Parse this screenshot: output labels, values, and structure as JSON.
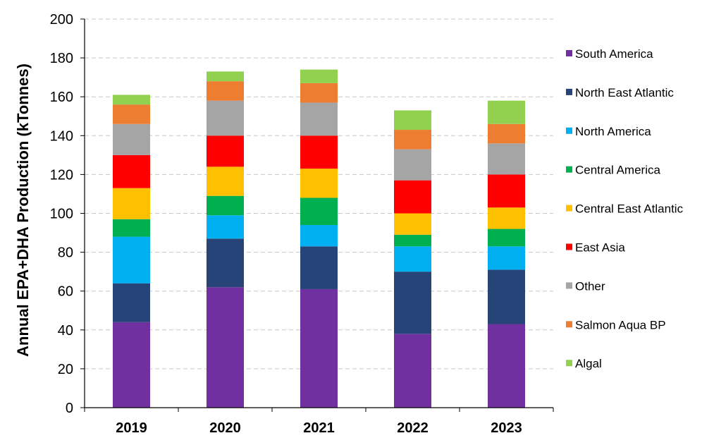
{
  "chart_data": {
    "type": "bar",
    "stacked": true,
    "title": "",
    "xlabel": "",
    "ylabel": "Annual EPA+DHA Production (kTonnes)",
    "ylim": [
      0,
      200
    ],
    "yticks": [
      0,
      20,
      40,
      60,
      80,
      100,
      120,
      140,
      160,
      180,
      200
    ],
    "grid": "horizontal dashed",
    "legend_position": "right",
    "categories": [
      "2019",
      "2020",
      "2021",
      "2022",
      "2023"
    ],
    "series": [
      {
        "name": "South America",
        "color": "#7030A0",
        "values": [
          44,
          62,
          61,
          38,
          43
        ]
      },
      {
        "name": "North East Atlantic",
        "color": "#264478",
        "values": [
          20,
          25,
          22,
          32,
          28
        ]
      },
      {
        "name": "North America",
        "color": "#00B0F0",
        "values": [
          24,
          12,
          11,
          13,
          12
        ]
      },
      {
        "name": "Central America",
        "color": "#00B050",
        "values": [
          9,
          10,
          14,
          6,
          9
        ]
      },
      {
        "name": "Central East Atlantic",
        "color": "#FFC000",
        "values": [
          16,
          15,
          15,
          11,
          11
        ]
      },
      {
        "name": "East Asia",
        "color": "#FF0000",
        "values": [
          17,
          16,
          17,
          17,
          17
        ]
      },
      {
        "name": "Other",
        "color": "#A5A5A5",
        "values": [
          16,
          18,
          17,
          16,
          16
        ]
      },
      {
        "name": "Salmon Aqua BP",
        "color": "#ED7D31",
        "values": [
          10,
          10,
          10,
          10,
          10
        ]
      },
      {
        "name": "Algal",
        "color": "#92D050",
        "values": [
          5,
          5,
          7,
          10,
          12
        ]
      }
    ],
    "legend_order": [
      "South America",
      "North East Atlantic",
      "North America",
      "Central America",
      "Central East Atlantic",
      "East Asia",
      "Other",
      "Salmon Aqua BP",
      "Algal"
    ]
  }
}
